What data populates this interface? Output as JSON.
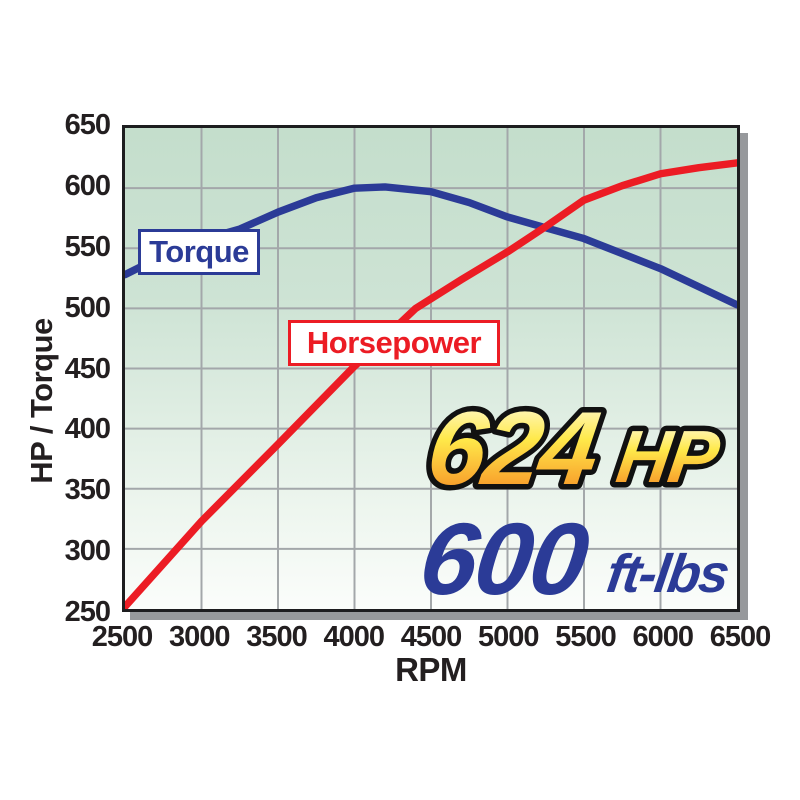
{
  "labels": {
    "torque": "Torque",
    "horsepower": "Horsepower"
  },
  "callout": {
    "hp_value": "624",
    "hp_unit": "HP",
    "tq_value": "600",
    "tq_unit": "ft-lbs"
  },
  "colors": {
    "torque_blue": "#2b3b97",
    "horsepower_red": "#ec1c24",
    "grid": "#a3a7aa",
    "axis_text": "#231f20",
    "plot_top": "#c4decc",
    "plot_bottom": "#fbfdfb",
    "shadow": "#97999c",
    "gold_top": "#fffef2",
    "gold_mid": "#ffe94a",
    "gold_bottom": "#f57f1e"
  },
  "chart_data": {
    "type": "line",
    "title": "",
    "xlabel": "RPM",
    "ylabel": "HP / Torque",
    "xlim": [
      2500,
      6500
    ],
    "ylim": [
      250,
      650
    ],
    "xticks": [
      2500,
      3000,
      3500,
      4000,
      4500,
      5000,
      5500,
      6000,
      6500
    ],
    "yticks": [
      650,
      600,
      550,
      500,
      450,
      400,
      350,
      300,
      250
    ],
    "grid": true,
    "legend_position": "on-curve-boxes",
    "categories": [
      2500,
      3000,
      3500,
      4000,
      4500,
      5000,
      5500,
      6000,
      6500
    ],
    "series": [
      {
        "name": "Torque",
        "color": "#2b3b97",
        "values": [
          528,
          557,
          580,
          600,
          597,
          576,
          558,
          533,
          503
        ],
        "points": [
          [
            2500,
            528
          ],
          [
            2750,
            544
          ],
          [
            3000,
            557
          ],
          [
            3250,
            566
          ],
          [
            3500,
            580
          ],
          [
            3750,
            592
          ],
          [
            4000,
            600
          ],
          [
            4200,
            601
          ],
          [
            4500,
            597
          ],
          [
            4750,
            588
          ],
          [
            5000,
            576
          ],
          [
            5250,
            567
          ],
          [
            5500,
            558
          ],
          [
            6000,
            533
          ],
          [
            6500,
            503
          ]
        ]
      },
      {
        "name": "Horsepower",
        "color": "#ec1c24",
        "values": [
          252,
          323,
          387,
          452,
          509,
          547,
          590,
          612,
          621
        ],
        "points": [
          [
            2500,
            252
          ],
          [
            3000,
            323
          ],
          [
            3500,
            387
          ],
          [
            4000,
            452
          ],
          [
            4400,
            500
          ],
          [
            4700,
            524
          ],
          [
            5000,
            547
          ],
          [
            5250,
            568
          ],
          [
            5500,
            590
          ],
          [
            5750,
            602
          ],
          [
            6000,
            612
          ],
          [
            6250,
            617
          ],
          [
            6500,
            621
          ]
        ]
      }
    ],
    "annotations": [
      {
        "text": "624 HP",
        "meaning": "peak horsepower"
      },
      {
        "text": "600 ft-lbs",
        "meaning": "peak torque"
      }
    ]
  }
}
